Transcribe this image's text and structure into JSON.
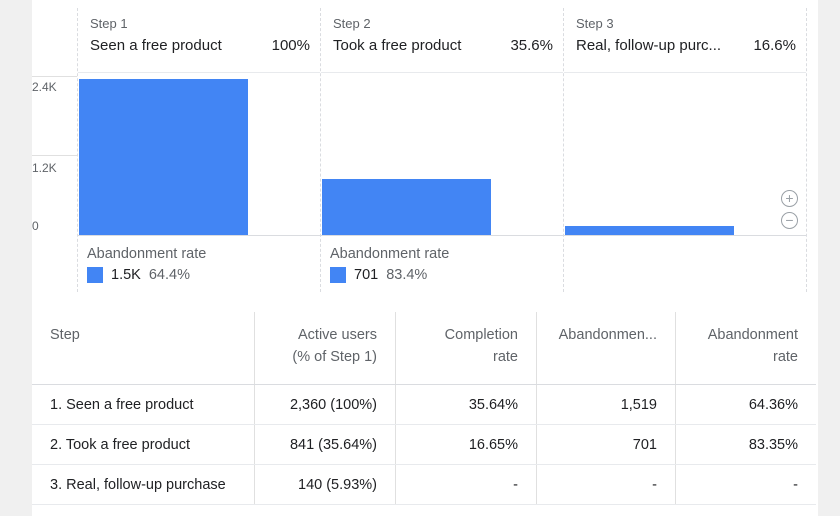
{
  "funnel": {
    "y_axis_ticks": [
      "2.4K",
      "1.2K",
      "0"
    ],
    "steps": [
      {
        "step_label": "Step 1",
        "name": "Seen a free product",
        "percent": "100%",
        "users": 2360,
        "abandonment_label": "Abandonment rate",
        "abandonment_count": "1.5K",
        "abandonment_rate": "64.4%"
      },
      {
        "step_label": "Step 2",
        "name": "Took a free product",
        "percent": "35.6%",
        "users": 841,
        "abandonment_label": "Abandonment rate",
        "abandonment_count": "701",
        "abandonment_rate": "83.4%"
      },
      {
        "step_label": "Step 3",
        "name": "Real, follow-up purc...",
        "percent": "16.6%",
        "users": 140
      }
    ],
    "y_max": 2400,
    "bar_color": "#4285f4",
    "zoom_in_icon": "plus-circle-icon",
    "zoom_out_icon": "minus-circle-icon"
  },
  "table": {
    "headers": {
      "step": "Step",
      "active_users_1": "Active users",
      "active_users_2": "(% of Step 1)",
      "completion_1": "Completion",
      "completion_2": "rate",
      "abandonments": "Abandonmen...",
      "abandonment_rate_1": "Abandonment",
      "abandonment_rate_2": "rate"
    },
    "rows": [
      {
        "step": "1. Seen a free product",
        "active_users": "2,360 (100%)",
        "completion_rate": "35.64%",
        "abandonments": "1,519",
        "abandonment_rate": "64.36%"
      },
      {
        "step": "2. Took a free product",
        "active_users": "841 (35.64%)",
        "completion_rate": "16.65%",
        "abandonments": "701",
        "abandonment_rate": "83.35%"
      },
      {
        "step": "3. Real, follow-up purchase",
        "active_users": "140 (5.93%)",
        "completion_rate": "-",
        "abandonments": "-",
        "abandonment_rate": "-"
      }
    ]
  }
}
